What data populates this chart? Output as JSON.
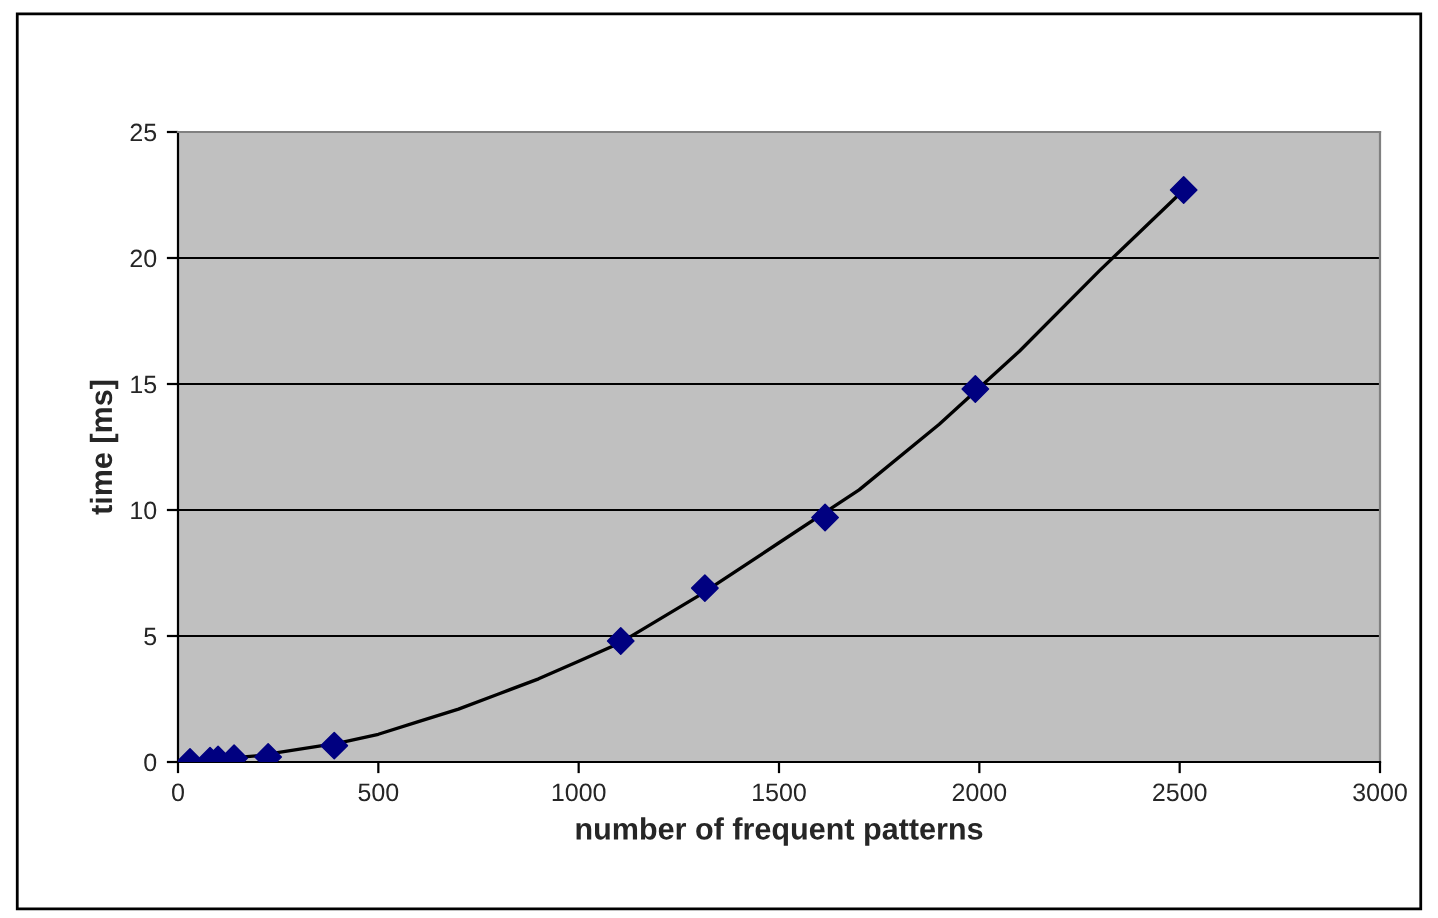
{
  "chart_data": {
    "type": "scatter",
    "xlabel": "number of frequent patterns",
    "ylabel": "time [ms]",
    "xlim": [
      0,
      3000
    ],
    "xticks": [
      0,
      500,
      1000,
      1500,
      2000,
      2500,
      3000
    ],
    "ylim": [
      0,
      25
    ],
    "yticks": [
      0,
      5,
      10,
      15,
      20,
      25
    ],
    "grid": "y",
    "legend": false,
    "series": [
      {
        "color": "#000080",
        "marker": "diamond",
        "x": [
          30,
          80,
          100,
          140,
          225,
          390,
          1105,
          1315,
          1615,
          1990,
          2510
        ],
        "values": [
          0,
          0.05,
          0.1,
          0.15,
          0.2,
          0.65,
          4.8,
          6.9,
          9.7,
          14.8,
          22.7
        ]
      },
      {
        "type": "line",
        "color": "#000000",
        "line_style": "solid",
        "marker": "none",
        "x": [
          50,
          200,
          400,
          500,
          600,
          700,
          800,
          900,
          1000,
          1100,
          1300,
          1500,
          1700,
          1900,
          2100,
          2300,
          2510
        ],
        "values": [
          0.05,
          0.25,
          0.75,
          1.1,
          1.6,
          2.1,
          2.7,
          3.3,
          4.0,
          4.7,
          6.6,
          8.7,
          10.8,
          13.4,
          16.3,
          19.5,
          22.7
        ]
      }
    ]
  }
}
